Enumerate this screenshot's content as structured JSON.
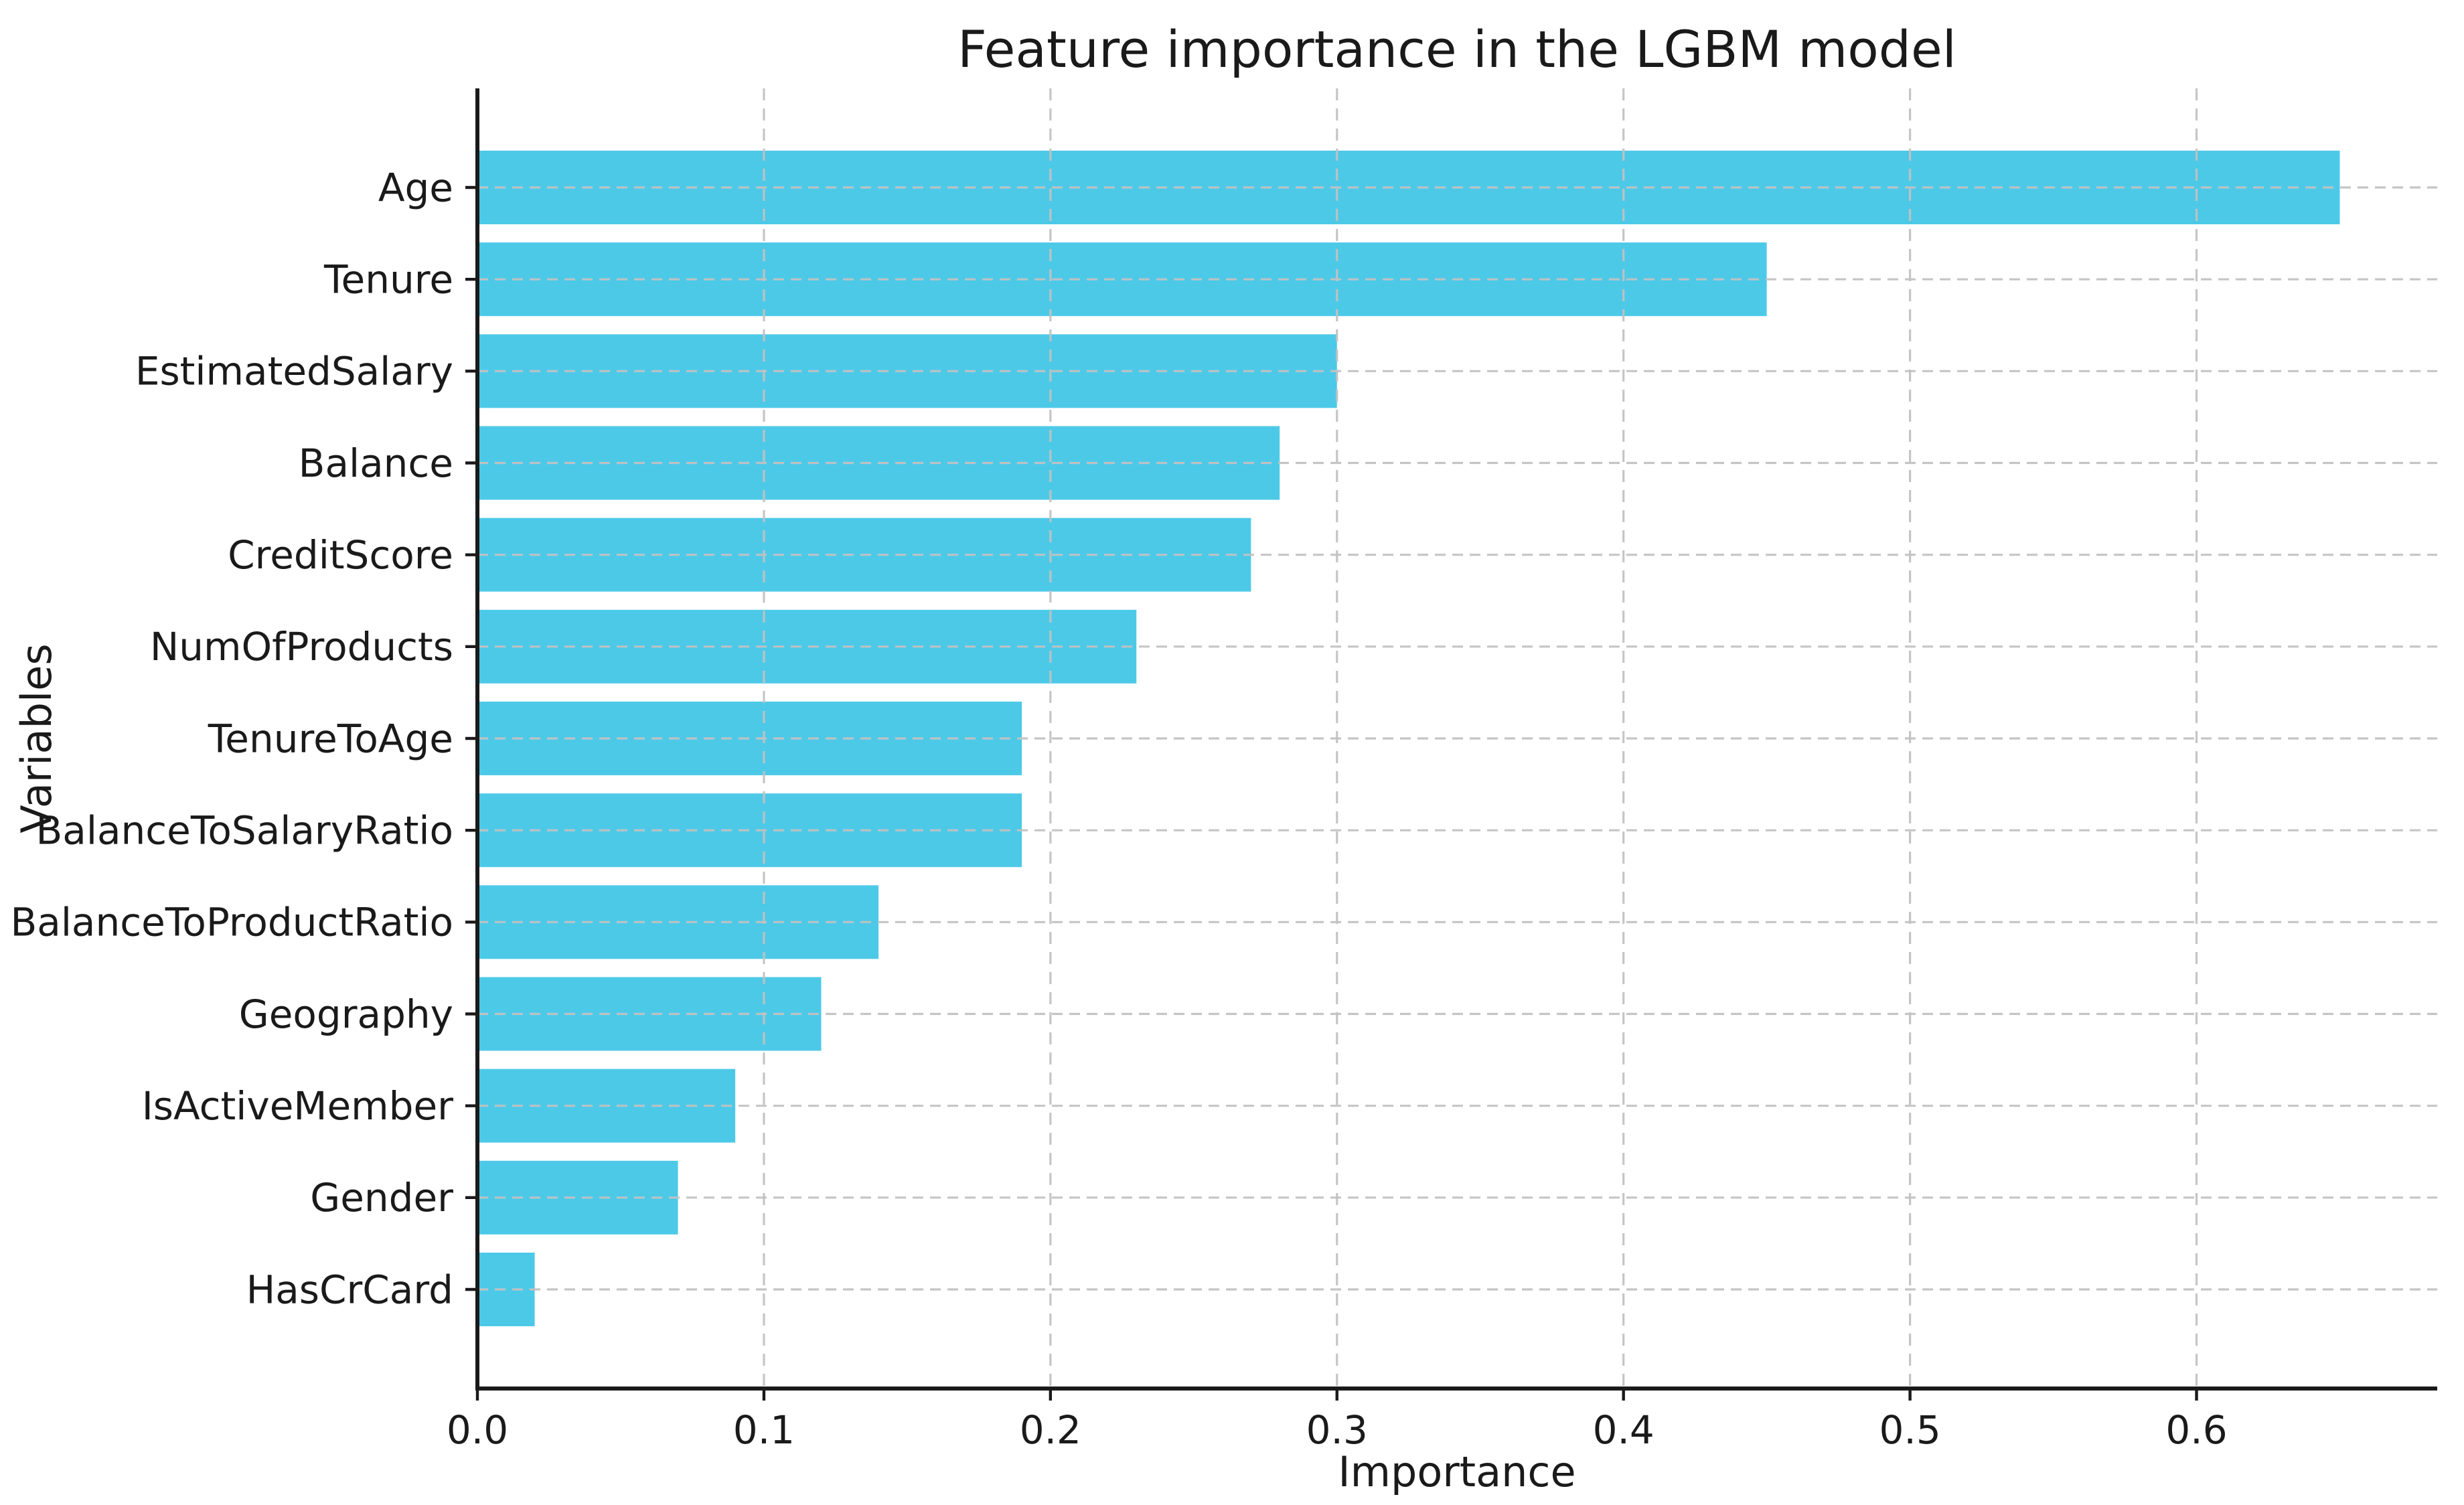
{
  "title": "Feature importance in the LGBM model",
  "chart_data": {
    "type": "bar",
    "orientation": "horizontal",
    "title": "Feature importance in the LGBM model",
    "xlabel": "Importance",
    "ylabel": "Variables",
    "categories": [
      "Age",
      "Tenure",
      "EstimatedSalary",
      "Balance",
      "CreditScore",
      "NumOfProducts",
      "TenureToAge",
      "BalanceToSalaryRatio",
      "BalanceToProductRatio",
      "Geography",
      "IsActiveMember",
      "Gender",
      "HasCrCard"
    ],
    "values": [
      0.65,
      0.45,
      0.3,
      0.28,
      0.27,
      0.23,
      0.19,
      0.19,
      0.14,
      0.12,
      0.09,
      0.07,
      0.02
    ],
    "xticks": [
      0.0,
      0.1,
      0.2,
      0.3,
      0.4,
      0.5,
      0.6
    ],
    "xtick_labels": [
      "0.0",
      "0.1",
      "0.2",
      "0.3",
      "0.4",
      "0.5",
      "0.6"
    ],
    "xlim": [
      0,
      0.684
    ],
    "grid": "both",
    "grid_style": "dashed",
    "legend": "none",
    "bar_color": "#4DC9E8",
    "grid_color": "#c2c2c2",
    "spine_color": "#1a1a1a",
    "text_color": "#1a1a1a"
  }
}
